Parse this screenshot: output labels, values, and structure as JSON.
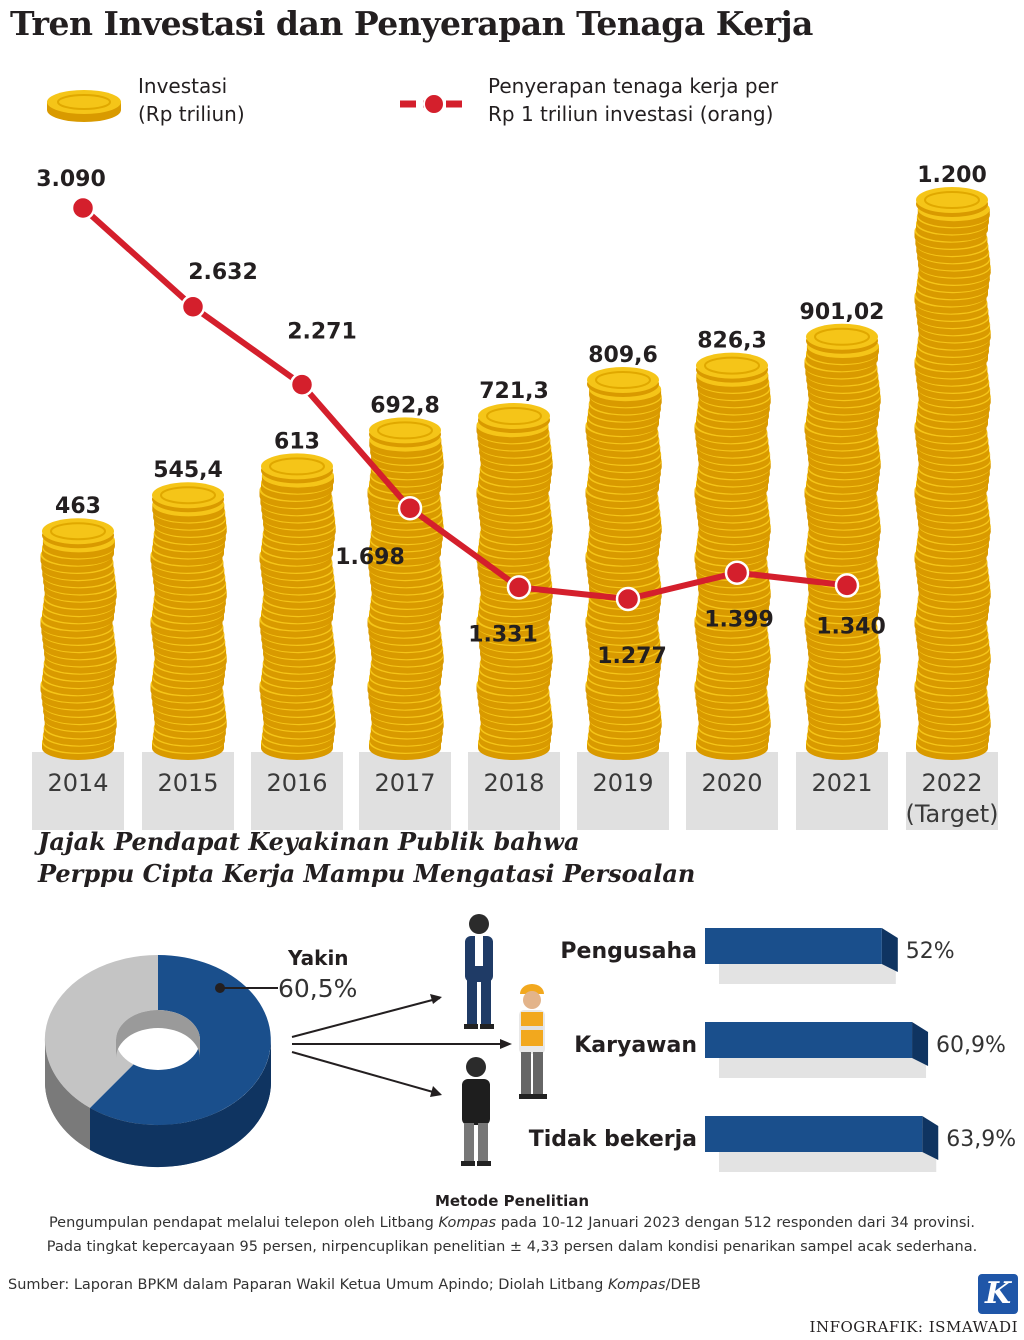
{
  "title": "Tren Investasi dan Penyerapan Tenaga Kerja",
  "legend": {
    "investasi_line1": "Investasi",
    "investasi_line2": "(Rp triliun)",
    "tenaga_line1": "Penyerapan tenaga kerja per",
    "tenaga_line2": "Rp 1 triliun investasi (orang)"
  },
  "colors": {
    "coin": "#f5c518",
    "coin_edge": "#d99a00",
    "line": "#d41f2c",
    "blue": "#1a4f8c",
    "gray": "#c4c4c4",
    "year_band": "#e0e0e0"
  },
  "chart_data": [
    {
      "type": "bar",
      "categories": [
        "2014",
        "2015",
        "2016",
        "2017",
        "2018",
        "2019",
        "2020",
        "2021",
        "2022"
      ],
      "category_sublabels": [
        "",
        "",
        "",
        "",
        "",
        "",
        "",
        "",
        "(Target)"
      ],
      "series": [
        {
          "name": "Investasi (Rp triliun)",
          "values": [
            463,
            545.4,
            613,
            692.8,
            721.3,
            809.6,
            826.3,
            901.02,
            1200
          ],
          "labels": [
            "463",
            "545,4",
            "613",
            "692,8",
            "721,3",
            "809,6",
            "826,3",
            "901,02",
            "1.200"
          ]
        },
        {
          "name": "Penyerapan tenaga kerja per Rp 1 triliun investasi (orang)",
          "type": "line",
          "values": [
            3090,
            2632,
            2271,
            1698,
            1331,
            1277,
            1399,
            1340,
            null
          ],
          "labels": [
            "3.090",
            "2.632",
            "2.271",
            "1.698",
            "1.331",
            "1.277",
            "1.399",
            "1.340",
            ""
          ]
        }
      ]
    },
    {
      "type": "pie",
      "title": "Jajak Pendapat Keyakinan Publik bahwa Perppu Cipta Kerja Mampu Mengatasi Persoalan",
      "slices": [
        {
          "name": "Yakin",
          "value": 60.5,
          "label": "60,5%"
        },
        {
          "name": "",
          "value": 39.5,
          "label": ""
        }
      ]
    },
    {
      "type": "bar",
      "orientation": "horizontal",
      "categories": [
        "Pengusaha",
        "Karyawan",
        "Tidak bekerja"
      ],
      "values": [
        52,
        60.9,
        63.9
      ],
      "labels": [
        "52%",
        "60,9%",
        "63,9%"
      ]
    }
  ],
  "survey": {
    "title_line1": "Jajak Pendapat Keyakinan Publik bahwa",
    "title_line2": "Perppu Cipta Kerja Mampu Mengatasi Persoalan",
    "yakin_label": "Yakin",
    "yakin_value": "60,5%"
  },
  "method": {
    "title": "Metode Penelitian",
    "line1_pre": "Pengumpulan pendapat melalui telepon oleh Litbang ",
    "line1_em": "Kompas",
    "line1_post": " pada 10-12 Januari 2023 dengan 512 responden dari 34 provinsi.",
    "line2": "Pada tingkat kepercayaan 95 persen, nirpencuplikan penelitian ± 4,33 persen dalam kondisi penarikan sampel acak sederhana."
  },
  "source": {
    "pre": "Sumber: Laporan BPKM dalam Paparan Wakil Ketua Umum Apindo; Diolah Litbang ",
    "em": "Kompas",
    "post": "/DEB"
  },
  "logo_letter": "K",
  "credit": "INFOGRAFIK: ISMAWADI"
}
